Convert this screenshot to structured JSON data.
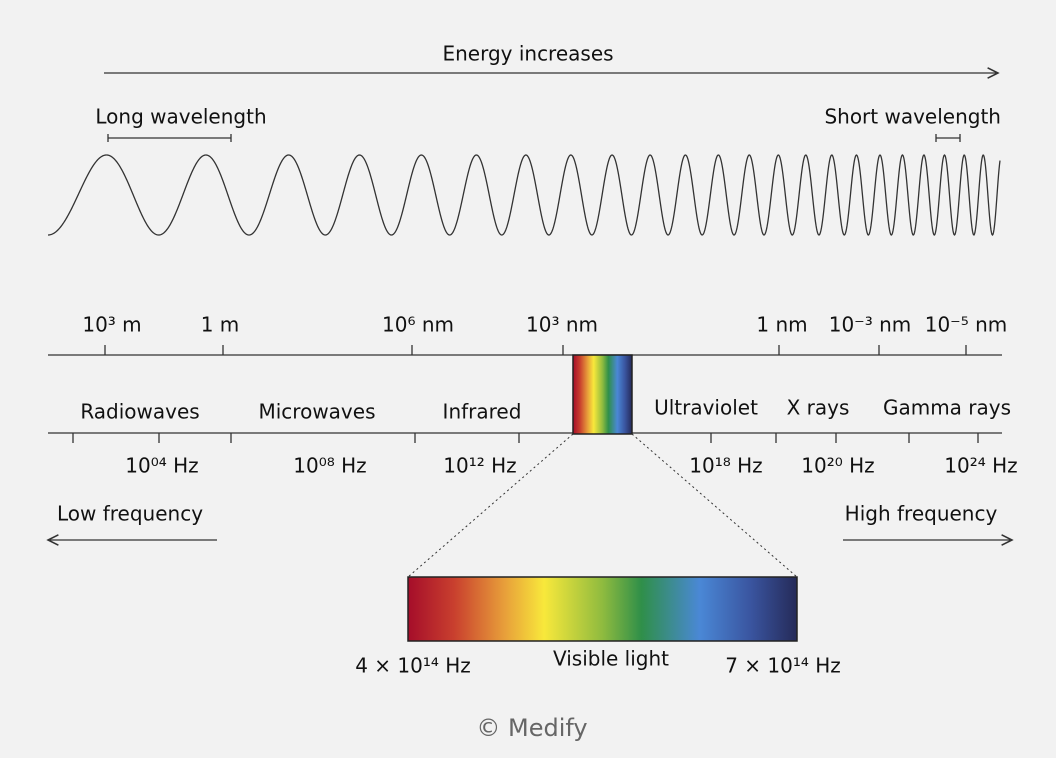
{
  "header": {
    "energy": "Energy increases",
    "long": "Long wavelength",
    "short": "Short wavelength"
  },
  "wavelengths": [
    "10³ m",
    "1 m",
    "10⁶ nm",
    "10³ nm",
    "1 nm",
    "10⁻³ nm",
    "10⁻⁵ nm"
  ],
  "bands": [
    "Radiowaves",
    "Microwaves",
    "Infrared",
    "Ultraviolet",
    "X rays",
    "Gamma rays"
  ],
  "frequencies": [
    "10⁰⁴ Hz",
    "10⁰⁸ Hz",
    "10¹² Hz",
    "10¹⁸ Hz",
    "10²⁰ Hz",
    "10²⁴ Hz"
  ],
  "low_frequency": "Low frequency",
  "high_frequency": "High frequency",
  "visible": {
    "low": "4 × 10¹⁴ Hz",
    "label": "Visible light",
    "high": "7 × 10¹⁴ Hz"
  },
  "footer": "© Medify"
}
